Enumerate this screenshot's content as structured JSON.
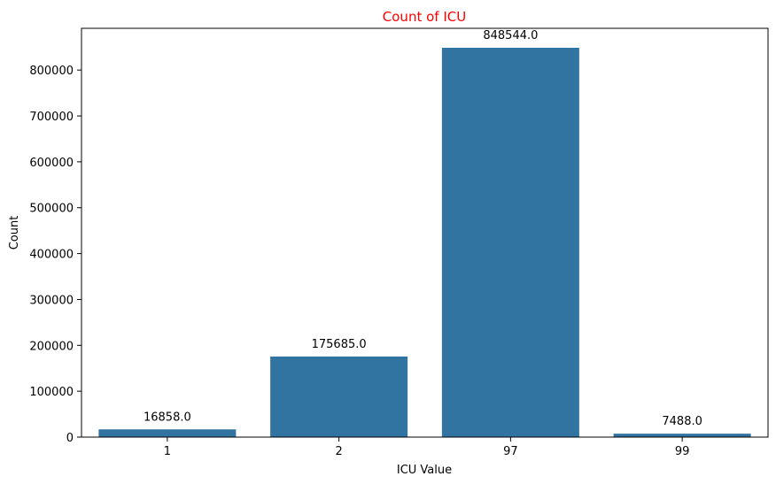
{
  "chart_data": {
    "type": "bar",
    "title": "Count of ICU",
    "xlabel": "ICU Value",
    "ylabel": "Count",
    "categories": [
      "1",
      "2",
      "97",
      "99"
    ],
    "values": [
      16858,
      175685,
      848544,
      7488
    ],
    "data_labels": [
      "16858.0",
      "175685.0",
      "848544.0",
      "7488.0"
    ],
    "yticks": [
      0,
      100000,
      200000,
      300000,
      400000,
      500000,
      600000,
      700000,
      800000
    ],
    "ytick_labels": [
      "0",
      "100000",
      "200000",
      "300000",
      "400000",
      "500000",
      "600000",
      "700000",
      "800000"
    ],
    "ylim": [
      0,
      890971
    ],
    "grid": false,
    "legend": "none",
    "bar_color": "#3274a1",
    "title_color": "#ff0000"
  }
}
